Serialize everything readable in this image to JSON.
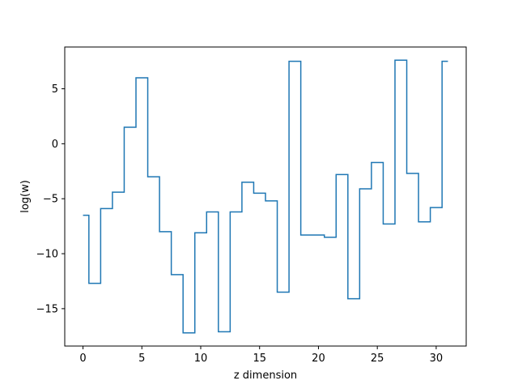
{
  "chart_data": {
    "type": "line",
    "drawstyle": "steps-mid",
    "title": "",
    "xlabel": "z dimension",
    "ylabel": "log(w)",
    "xlim": [
      -1.55,
      32.55
    ],
    "ylim": [
      -18.4,
      8.8
    ],
    "xticks": [
      0,
      5,
      10,
      15,
      20,
      25,
      30
    ],
    "yticks": [
      -15,
      -10,
      -5,
      0,
      5
    ],
    "grid": false,
    "legend": "none",
    "series": [
      {
        "color": "#1f77b4",
        "x": [
          0,
          1,
          2,
          3,
          4,
          5,
          6,
          7,
          8,
          9,
          10,
          11,
          12,
          13,
          14,
          15,
          16,
          17,
          18,
          19,
          20,
          21,
          22,
          23,
          24,
          25,
          26,
          27,
          28,
          29,
          30,
          31
        ],
        "values": [
          -6.5,
          -12.7,
          -5.9,
          -4.4,
          1.5,
          6.0,
          -3.0,
          -8.0,
          -11.9,
          -17.2,
          -8.1,
          -6.2,
          -17.1,
          -6.2,
          -3.5,
          -4.5,
          -5.2,
          -13.5,
          7.5,
          -8.3,
          -8.3,
          -8.5,
          -2.8,
          -14.1,
          -4.1,
          -1.7,
          -7.3,
          7.6,
          -2.7,
          -7.1,
          -5.8,
          7.5
        ]
      }
    ]
  }
}
